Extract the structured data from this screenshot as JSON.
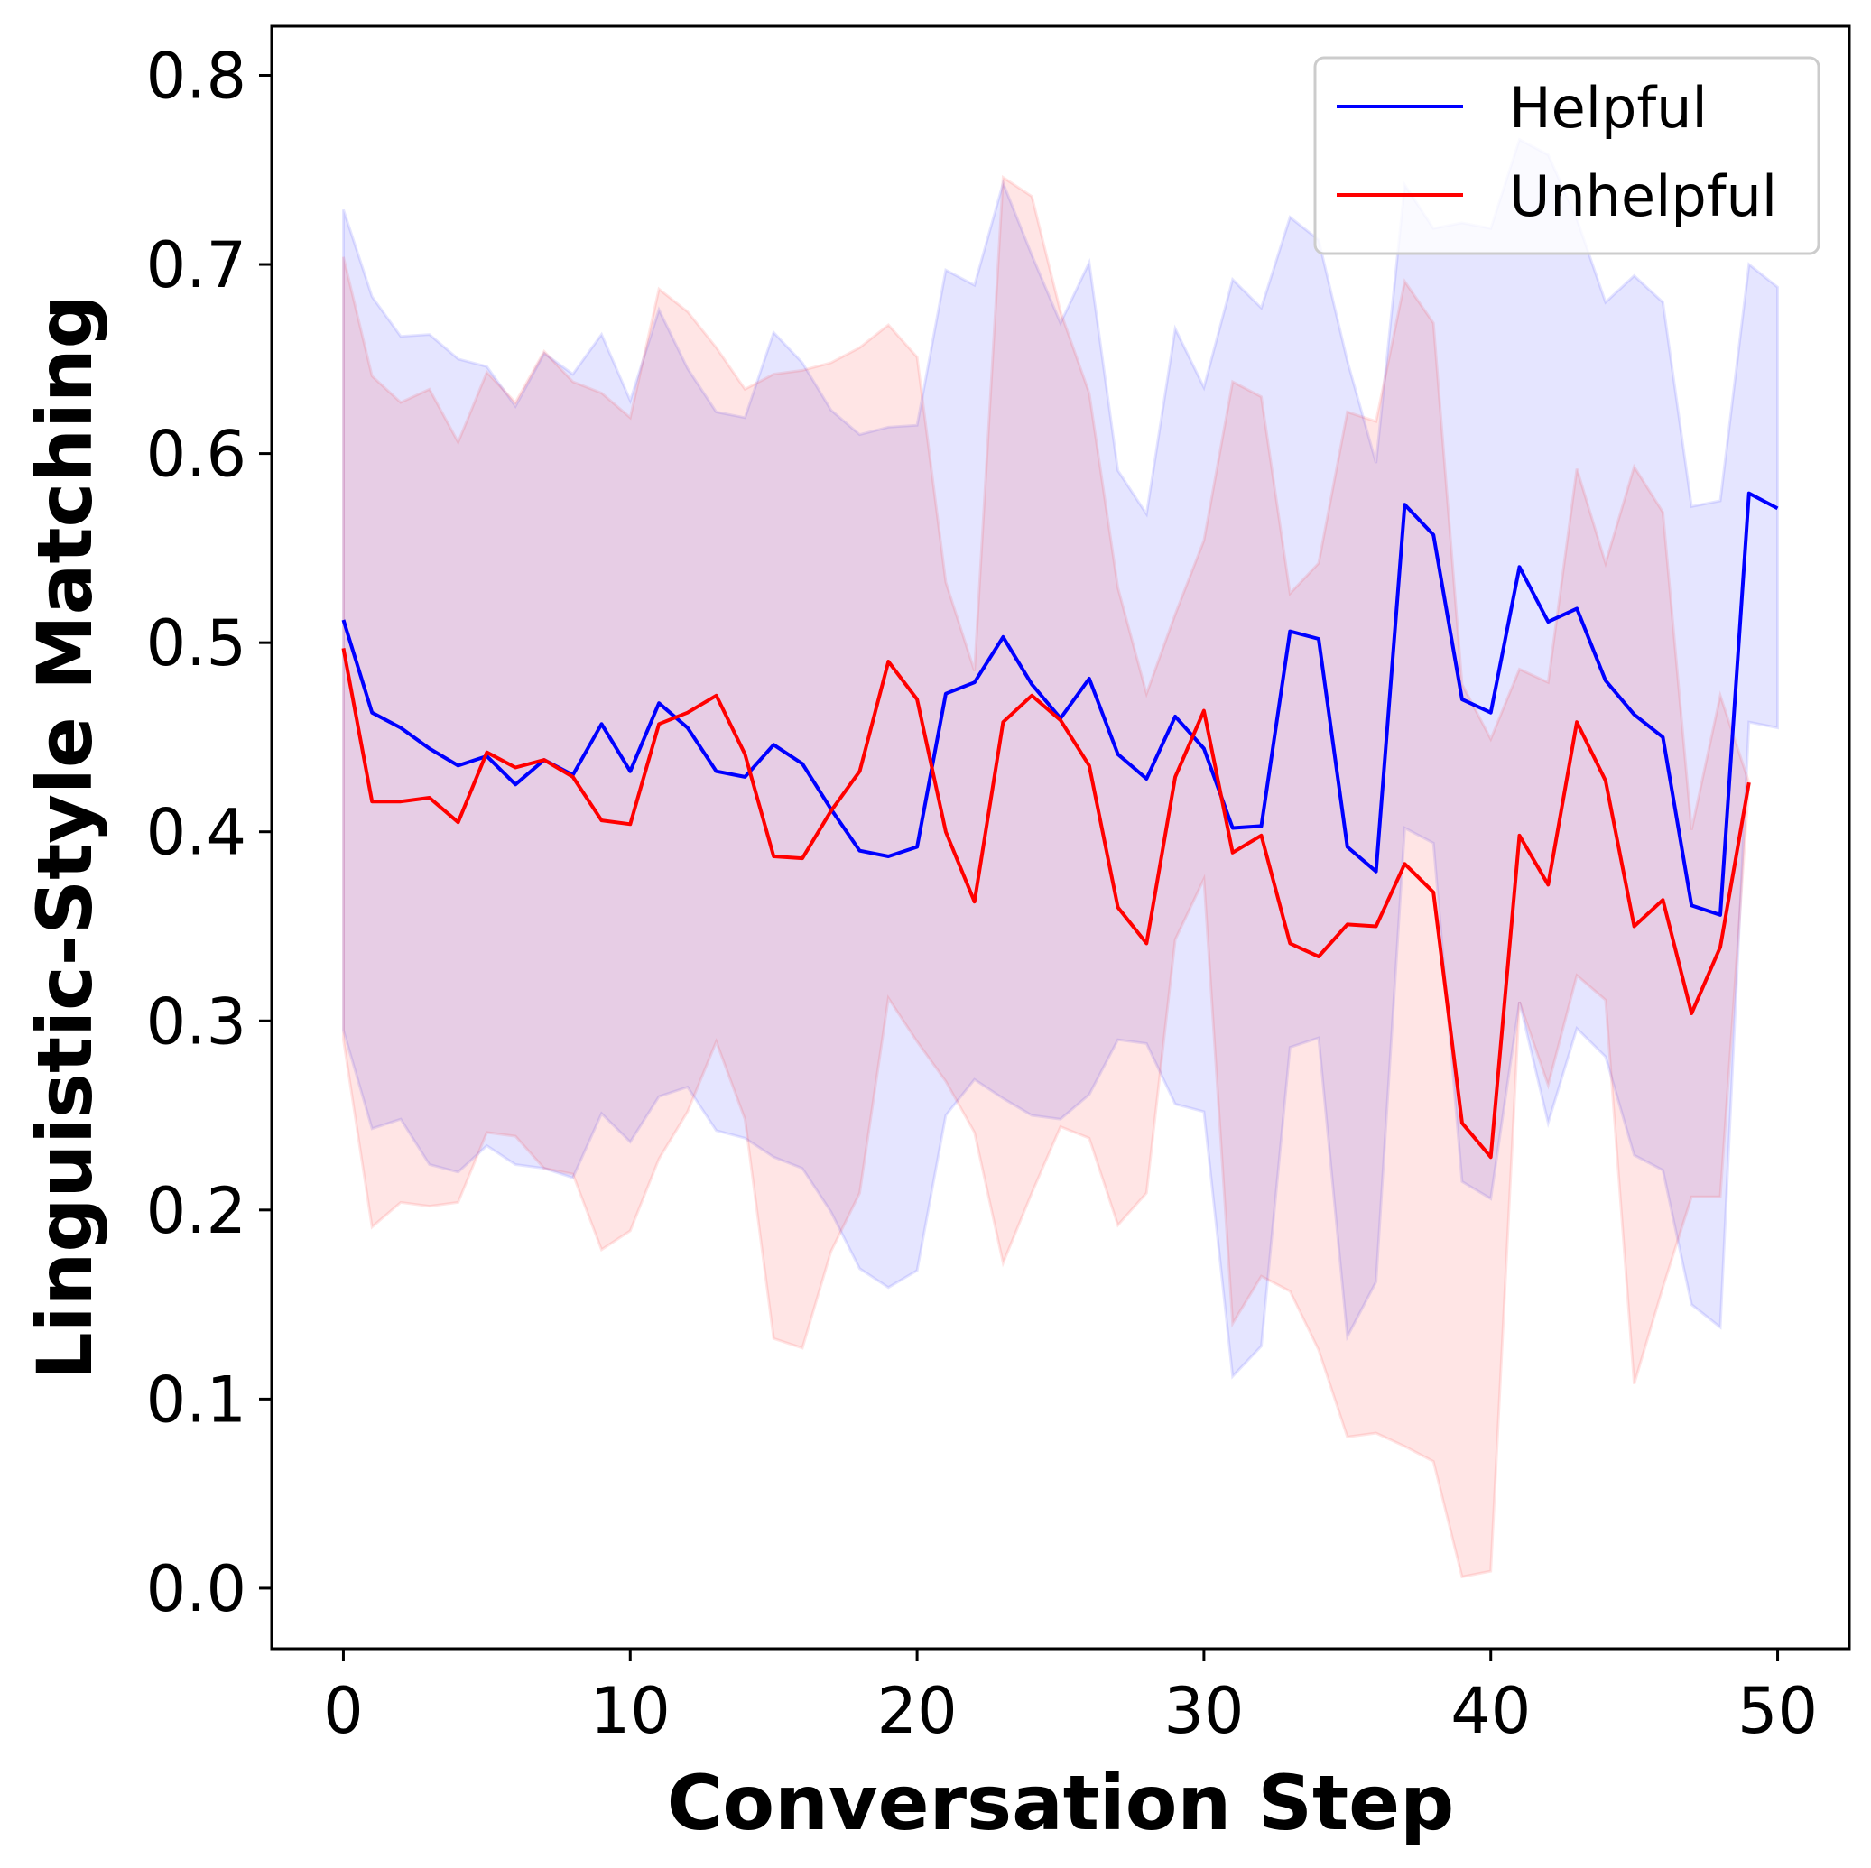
{
  "chart_data": {
    "type": "line",
    "title": "",
    "xlabel": "Conversation Step",
    "ylabel": "Linguistic-Style Matching",
    "xlim": [
      -2.5,
      52.5
    ],
    "ylim": [
      -0.032,
      0.826
    ],
    "xticks": [
      0,
      10,
      20,
      30,
      40,
      50
    ],
    "yticks": [
      0.0,
      0.1,
      0.2,
      0.3,
      0.4,
      0.5,
      0.6,
      0.7,
      0.8
    ],
    "xtick_labels": [
      "0",
      "10",
      "20",
      "30",
      "40",
      "50"
    ],
    "ytick_labels": [
      "0.0",
      "0.1",
      "0.2",
      "0.3",
      "0.4",
      "0.5",
      "0.6",
      "0.7",
      "0.8"
    ],
    "grid": false,
    "legend_position": "top-right",
    "series": [
      {
        "name": "Helpful",
        "color": "#0000ff",
        "x": [
          0,
          1,
          2,
          3,
          4,
          5,
          6,
          7,
          8,
          9,
          10,
          11,
          12,
          13,
          14,
          15,
          16,
          17,
          18,
          19,
          20,
          21,
          22,
          23,
          24,
          25,
          26,
          27,
          28,
          29,
          30,
          31,
          32,
          33,
          34,
          35,
          36,
          37,
          38,
          39,
          40,
          41,
          42,
          43,
          44,
          45,
          46,
          47,
          48,
          49,
          50
        ],
        "values": [
          0.512,
          0.463,
          0.455,
          0.444,
          0.435,
          0.44,
          0.425,
          0.438,
          0.43,
          0.457,
          0.432,
          0.468,
          0.455,
          0.432,
          0.429,
          0.446,
          0.436,
          0.412,
          0.39,
          0.387,
          0.392,
          0.473,
          0.479,
          0.503,
          0.478,
          0.46,
          0.481,
          0.441,
          0.428,
          0.461,
          0.444,
          0.402,
          0.403,
          0.506,
          0.502,
          0.392,
          0.379,
          0.573,
          0.557,
          0.47,
          0.463,
          0.54,
          0.511,
          0.518,
          0.48,
          0.462,
          0.45,
          0.361,
          0.356,
          0.579,
          0.571
        ],
        "band_upper": [
          0.729,
          0.683,
          0.662,
          0.663,
          0.65,
          0.646,
          0.625,
          0.653,
          0.642,
          0.663,
          0.628,
          0.676,
          0.645,
          0.622,
          0.619,
          0.664,
          0.648,
          0.623,
          0.61,
          0.614,
          0.615,
          0.697,
          0.689,
          0.743,
          0.705,
          0.669,
          0.701,
          0.591,
          0.568,
          0.666,
          0.635,
          0.692,
          0.677,
          0.725,
          0.713,
          0.649,
          0.595,
          0.742,
          0.719,
          0.722,
          0.719,
          0.766,
          0.758,
          0.724,
          0.68,
          0.694,
          0.68,
          0.572,
          0.575,
          0.7,
          0.688
        ],
        "band_lower": [
          0.295,
          0.243,
          0.248,
          0.224,
          0.22,
          0.234,
          0.224,
          0.222,
          0.217,
          0.251,
          0.236,
          0.26,
          0.265,
          0.242,
          0.238,
          0.228,
          0.222,
          0.199,
          0.169,
          0.159,
          0.168,
          0.25,
          0.269,
          0.259,
          0.25,
          0.248,
          0.261,
          0.29,
          0.288,
          0.256,
          0.252,
          0.112,
          0.128,
          0.286,
          0.291,
          0.133,
          0.162,
          0.402,
          0.394,
          0.215,
          0.206,
          0.31,
          0.246,
          0.296,
          0.281,
          0.229,
          0.221,
          0.15,
          0.138,
          0.458,
          0.455
        ]
      },
      {
        "name": "Unhelpful",
        "color": "#ff0000",
        "x": [
          0,
          1,
          2,
          3,
          4,
          5,
          6,
          7,
          8,
          9,
          10,
          11,
          12,
          13,
          14,
          15,
          16,
          17,
          18,
          19,
          20,
          21,
          22,
          23,
          24,
          25,
          26,
          27,
          28,
          29,
          30,
          31,
          32,
          33,
          34,
          35,
          36,
          37,
          38,
          39,
          40,
          41,
          42,
          43,
          44,
          45,
          46,
          47,
          48,
          49
        ],
        "values": [
          0.497,
          0.416,
          0.416,
          0.418,
          0.405,
          0.442,
          0.434,
          0.438,
          0.429,
          0.406,
          0.404,
          0.457,
          0.463,
          0.472,
          0.441,
          0.387,
          0.386,
          0.411,
          0.432,
          0.49,
          0.47,
          0.4,
          0.363,
          0.458,
          0.472,
          0.459,
          0.435,
          0.36,
          0.341,
          0.429,
          0.464,
          0.389,
          0.398,
          0.341,
          0.334,
          0.351,
          0.35,
          0.383,
          0.368,
          0.246,
          0.228,
          0.398,
          0.372,
          0.458,
          0.427,
          0.35,
          0.364,
          0.304,
          0.339,
          0.426
        ],
        "band_upper": [
          0.704,
          0.641,
          0.627,
          0.634,
          0.606,
          0.643,
          0.627,
          0.654,
          0.638,
          0.632,
          0.619,
          0.687,
          0.675,
          0.656,
          0.634,
          0.642,
          0.644,
          0.648,
          0.656,
          0.668,
          0.651,
          0.532,
          0.485,
          0.746,
          0.736,
          0.675,
          0.632,
          0.529,
          0.473,
          0.515,
          0.554,
          0.638,
          0.63,
          0.526,
          0.542,
          0.622,
          0.617,
          0.691,
          0.669,
          0.478,
          0.449,
          0.486,
          0.479,
          0.592,
          0.542,
          0.593,
          0.569,
          0.401,
          0.472,
          0.426
        ],
        "band_lower": [
          0.29,
          0.191,
          0.204,
          0.202,
          0.204,
          0.241,
          0.239,
          0.222,
          0.219,
          0.179,
          0.189,
          0.227,
          0.252,
          0.289,
          0.248,
          0.132,
          0.127,
          0.178,
          0.209,
          0.312,
          0.289,
          0.268,
          0.241,
          0.172,
          0.209,
          0.244,
          0.238,
          0.192,
          0.209,
          0.343,
          0.375,
          0.14,
          0.165,
          0.157,
          0.126,
          0.08,
          0.082,
          0.075,
          0.067,
          0.006,
          0.009,
          0.31,
          0.266,
          0.324,
          0.311,
          0.108,
          0.159,
          0.207,
          0.207,
          0.426
        ]
      }
    ]
  }
}
